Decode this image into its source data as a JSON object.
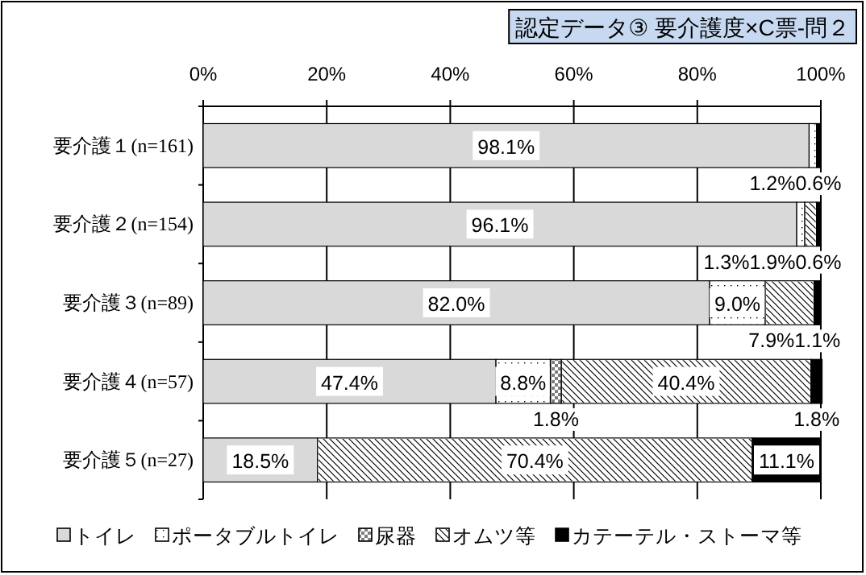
{
  "chart_data": {
    "type": "bar",
    "orientation": "horizontal",
    "stacked": true,
    "title": "認定データ③ 要介護度×C票-問２",
    "categories": [
      "要介護１(n=161)",
      "要介護２(n=154)",
      "要介護３(n=89)",
      "要介護４(n=57)",
      "要介護５(n=27)"
    ],
    "series": [
      {
        "name": "トイレ",
        "color": "#d9d9d9",
        "values": [
          98.1,
          96.1,
          82.0,
          47.4,
          18.5
        ],
        "value_labels": [
          "98.1%",
          "96.1%",
          "82.0%",
          "47.4%",
          "18.5%"
        ]
      },
      {
        "name": "ポータブルトイレ",
        "color": "#ffffff",
        "values": [
          1.2,
          1.3,
          9.0,
          8.8,
          0
        ],
        "value_labels": [
          "1.2%",
          "1.3%",
          "9.0%",
          "8.8%",
          null
        ]
      },
      {
        "name": "尿器",
        "color": "#808080",
        "values": [
          0,
          0,
          0,
          1.8,
          0
        ],
        "value_labels": [
          null,
          null,
          null,
          "1.8%",
          null
        ]
      },
      {
        "name": "オムツ等",
        "color": "#ffffff",
        "values": [
          0,
          1.9,
          7.9,
          40.4,
          70.4
        ],
        "value_labels": [
          null,
          "1.9%",
          "7.9%",
          "40.4%",
          "70.4%"
        ]
      },
      {
        "name": "カテーテル・ストーマ等",
        "color": "#000000",
        "values": [
          0.6,
          0.6,
          1.1,
          1.8,
          11.1
        ],
        "value_labels": [
          "0.6%",
          "0.6%",
          "1.1%",
          "1.8%",
          "11.1%"
        ]
      }
    ],
    "xlim": [
      0,
      100
    ],
    "xticks": [
      {
        "value": 0,
        "label": "0%"
      },
      {
        "value": 20,
        "label": "20%"
      },
      {
        "value": 40,
        "label": "40%"
      },
      {
        "value": 60,
        "label": "60%"
      },
      {
        "value": 80,
        "label": "80%"
      },
      {
        "value": 100,
        "label": "100%"
      }
    ],
    "grid": "x",
    "legend": "bottom"
  }
}
